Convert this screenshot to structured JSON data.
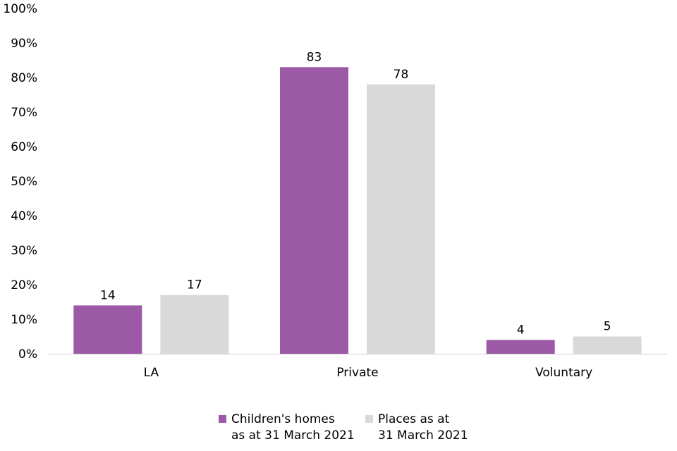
{
  "chart_data": {
    "type": "bar",
    "categories": [
      "LA",
      "Private",
      "Voluntary"
    ],
    "series": [
      {
        "name": "Children's homes as at 31 March 2021",
        "legend_lines": [
          "Children's homes",
          "as at 31 March 2021"
        ],
        "values": [
          14,
          83,
          4
        ],
        "color": "#9b59a6"
      },
      {
        "name": "Places as at 31 March 2021",
        "legend_lines": [
          "Places as at",
          "31 March 2021"
        ],
        "values": [
          17,
          78,
          5
        ],
        "color": "#d9d9da"
      }
    ],
    "y_ticks": [
      "0%",
      "10%",
      "20%",
      "30%",
      "40%",
      "50%",
      "60%",
      "70%",
      "80%",
      "90%",
      "100%"
    ],
    "ylim": [
      0,
      100
    ],
    "grid": false,
    "legend_position": "bottom",
    "data_labels": true
  }
}
